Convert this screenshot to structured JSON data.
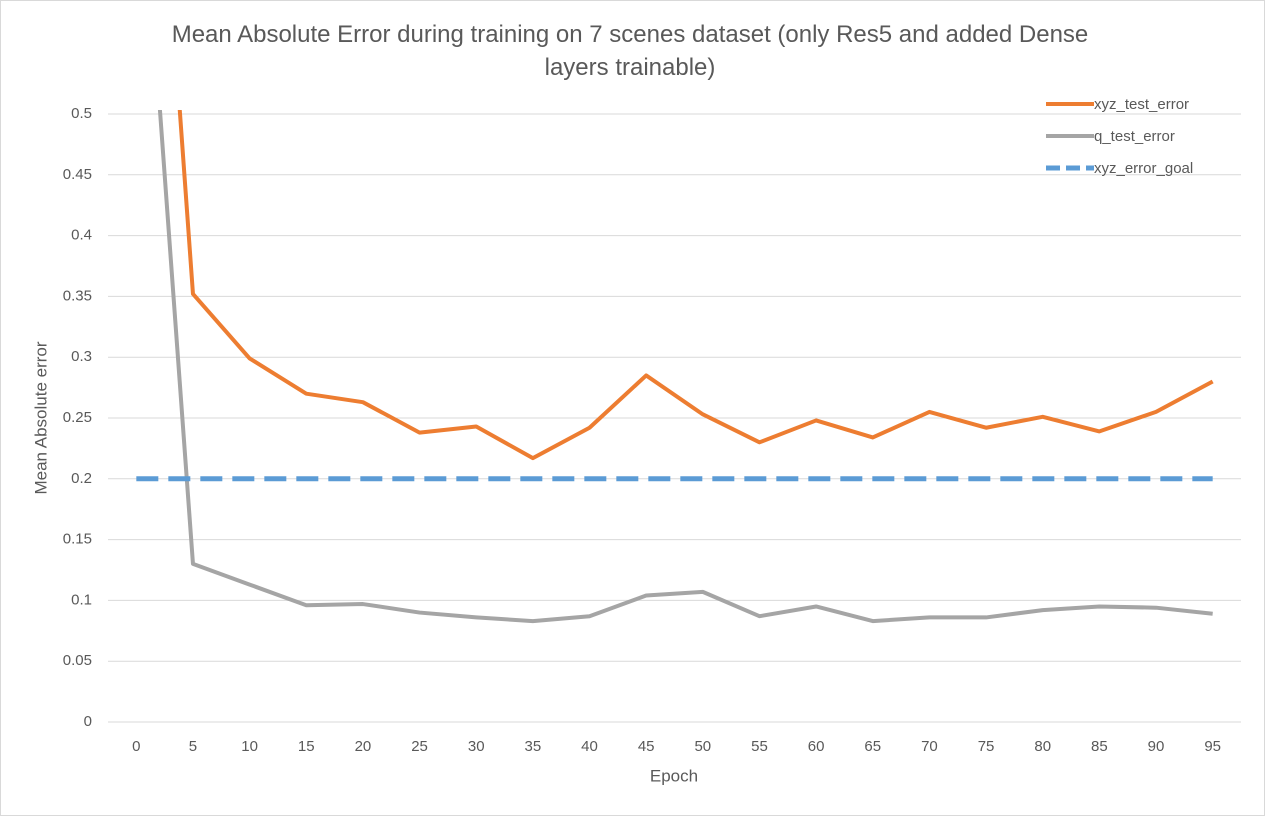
{
  "chart_data": {
    "type": "line",
    "title": "Mean Absolute Error during training on 7 scenes dataset (only Res5 and added Dense layers trainable)",
    "xlabel": "Epoch",
    "ylabel": "Mean Absolute error",
    "categories": [
      "0",
      "5",
      "10",
      "15",
      "20",
      "25",
      "30",
      "35",
      "40",
      "45",
      "50",
      "55",
      "60",
      "65",
      "70",
      "75",
      "80",
      "85",
      "90",
      "95"
    ],
    "series": [
      {
        "name": "xyz_test_error",
        "color": "#ed7d31",
        "dash": false,
        "values": [
          1.0,
          0.352,
          0.299,
          0.27,
          0.263,
          0.238,
          0.243,
          0.217,
          0.242,
          0.285,
          0.253,
          0.23,
          0.248,
          0.234,
          0.255,
          0.242,
          0.251,
          0.239,
          0.255,
          0.28
        ]
      },
      {
        "name": "q_test_error",
        "color": "#a5a5a5",
        "dash": false,
        "values": [
          0.77,
          0.13,
          0.113,
          0.096,
          0.097,
          0.09,
          0.086,
          0.083,
          0.087,
          0.104,
          0.107,
          0.087,
          0.095,
          0.083,
          0.086,
          0.086,
          0.092,
          0.095,
          0.094,
          0.089
        ]
      },
      {
        "name": "xyz_error_goal",
        "color": "#5b9bd5",
        "dash": true,
        "values": [
          0.2,
          0.2,
          0.2,
          0.2,
          0.2,
          0.2,
          0.2,
          0.2,
          0.2,
          0.2,
          0.2,
          0.2,
          0.2,
          0.2,
          0.2,
          0.2,
          0.2,
          0.2,
          0.2,
          0.2
        ]
      }
    ],
    "ylim": [
      0,
      0.5
    ],
    "yticks": [
      0,
      0.05,
      0.1,
      0.15,
      0.2,
      0.25,
      0.3,
      0.35,
      0.4,
      0.45,
      0.5
    ],
    "grid": true,
    "legend": "top-right"
  }
}
